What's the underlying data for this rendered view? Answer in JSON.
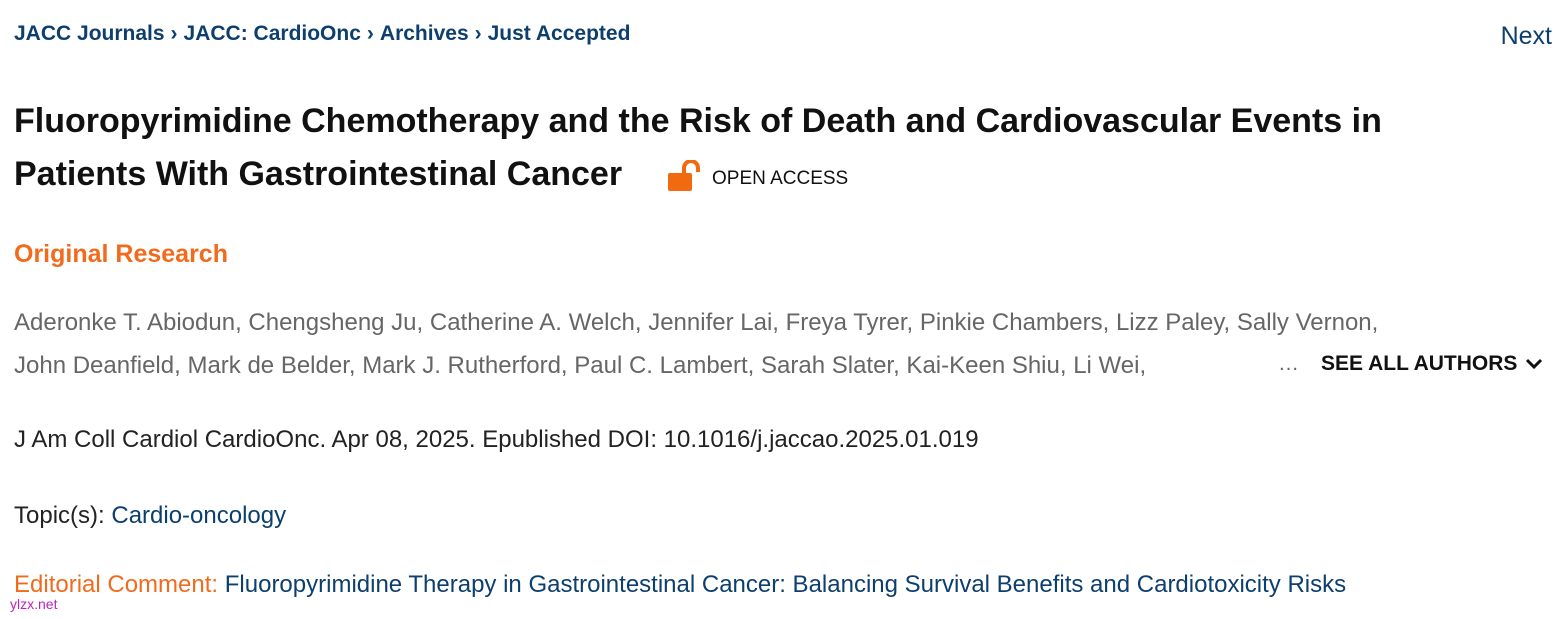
{
  "breadcrumb": {
    "items": [
      "JACC Journals",
      "JACC: CardioOnc",
      "Archives",
      "Just Accepted"
    ],
    "separator": "›"
  },
  "next": "Next",
  "article": {
    "title_lines": [
      "Fluoropyrimidine Chemotherapy and the Risk of Death and Cardiovascular Events in",
      "Patients With Gastrointestinal Cancer"
    ],
    "access": "OPEN ACCESS",
    "article_type": "Original Research",
    "author_lines": [
      "Aderonke T. Abiodun, Chengsheng Ju, Catherine A. Welch, Jennifer Lai, Freya Tyrer, Pinkie Chambers, Lizz Paley, Sally Vernon,",
      "John Deanfield, Mark de Belder, Mark J. Rutherford, Paul C. Lambert, Sarah Slater, Kai-Keen Shiu, Li Wei,"
    ],
    "ellipsis": "…",
    "see_all_authors": "SEE ALL AUTHORS",
    "citation": "J Am Coll Cardiol CardioOnc. Apr 08, 2025. Epublished DOI: 10.1016/j.jaccao.2025.01.019",
    "topics_label": "Topic(s):",
    "topic": "Cardio-oncology",
    "editorial_label": "Editorial Comment:",
    "editorial_title": "Fluoropyrimidine Therapy in Gastrointestinal Cancer: Balancing Survival Benefits and Cardiotoxicity Risks"
  },
  "watermark": "ylzx.net"
}
